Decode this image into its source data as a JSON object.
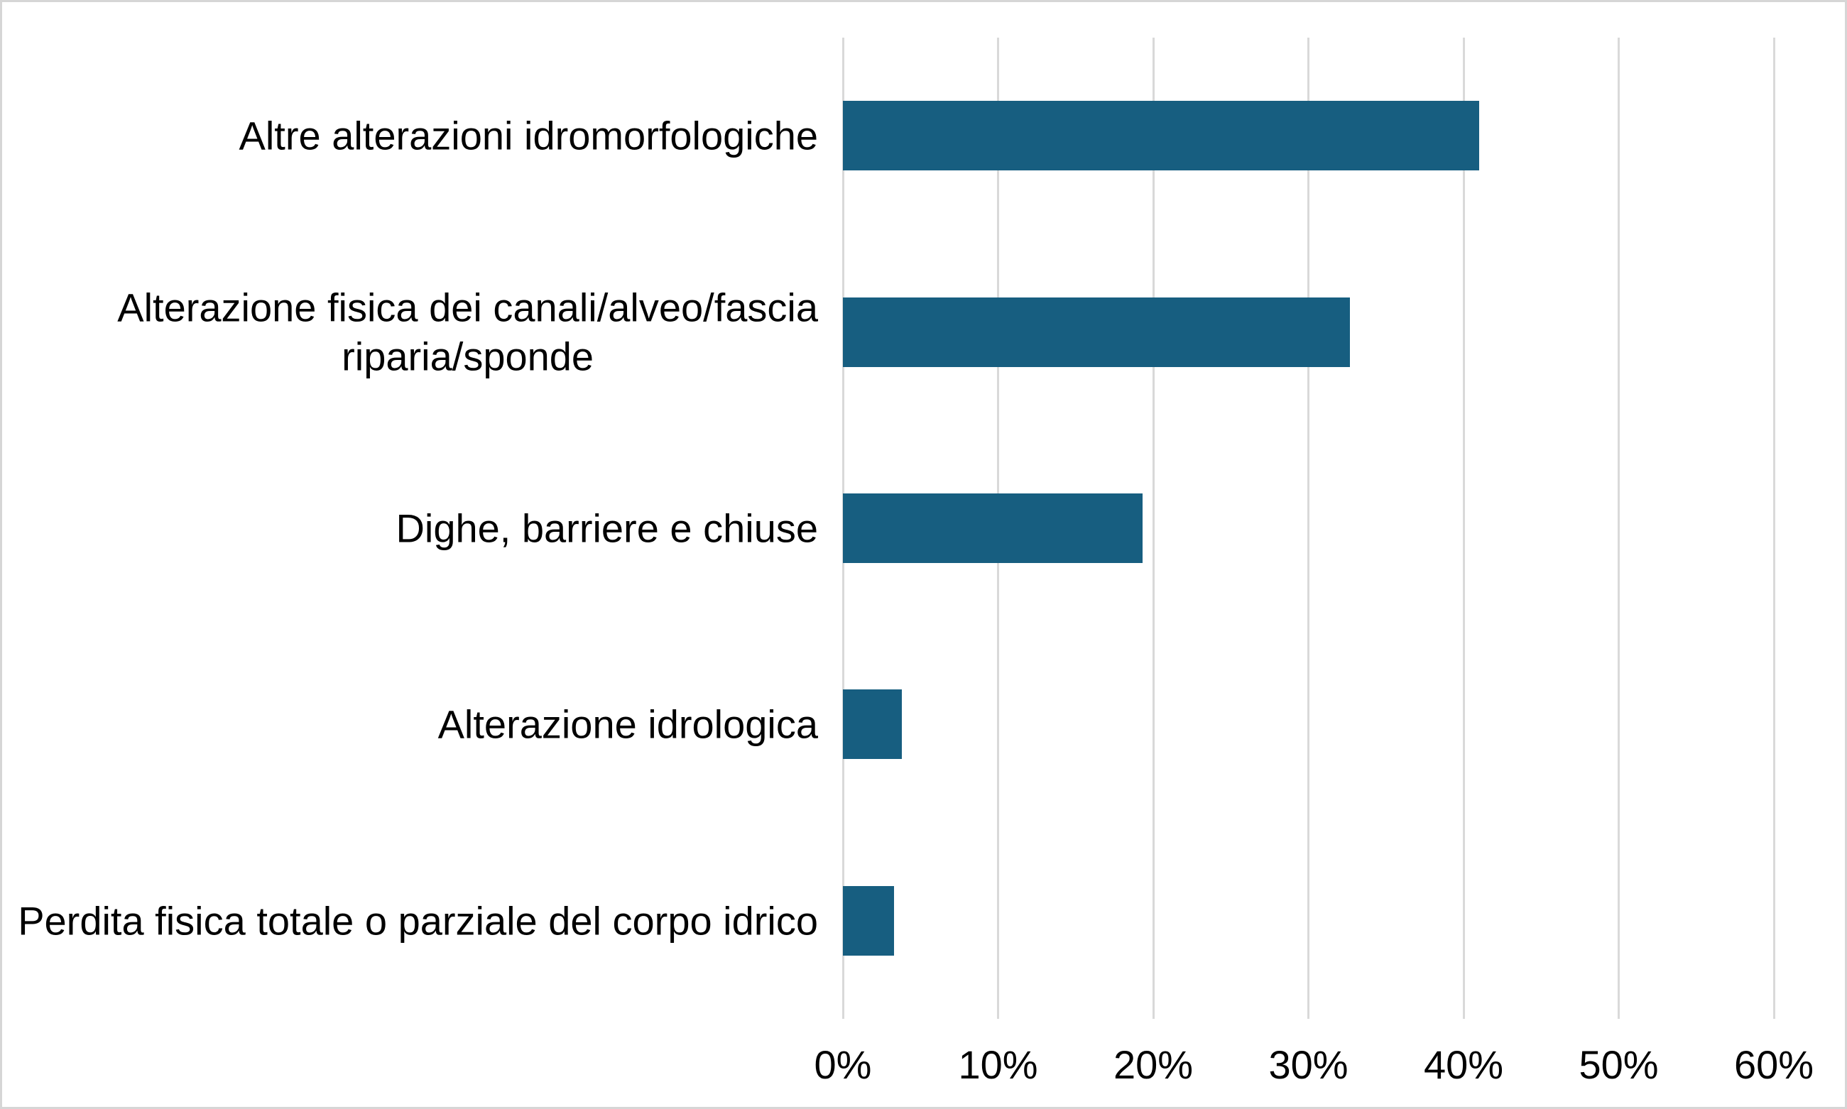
{
  "chart_data": {
    "type": "bar",
    "orientation": "horizontal",
    "title": "",
    "categories": [
      "Altre alterazioni idromorfologiche",
      "Alterazione fisica dei canali/alveo/fascia\nriparia/sponde",
      "Dighe, barriere e chiuse",
      "Alterazione idrologica",
      "Perdita fisica totale o parziale del corpo idrico"
    ],
    "values": [
      41,
      32.7,
      19.3,
      3.8,
      3.3
    ],
    "value_unit": "%",
    "xlabel": "",
    "ylabel": "",
    "xlim": [
      0,
      60
    ],
    "x_ticks": [
      "0%",
      "10%",
      "20%",
      "30%",
      "40%",
      "50%",
      "60%"
    ],
    "x_tick_values": [
      0,
      10,
      20,
      30,
      40,
      50,
      60
    ],
    "grid": "vertical-only",
    "legend": "none",
    "colors": {
      "bar": "#175e80",
      "gridline": "#d9d9d9",
      "frame_border": "#d6d6d6",
      "background": "#ffffff",
      "text": "#000000"
    }
  }
}
